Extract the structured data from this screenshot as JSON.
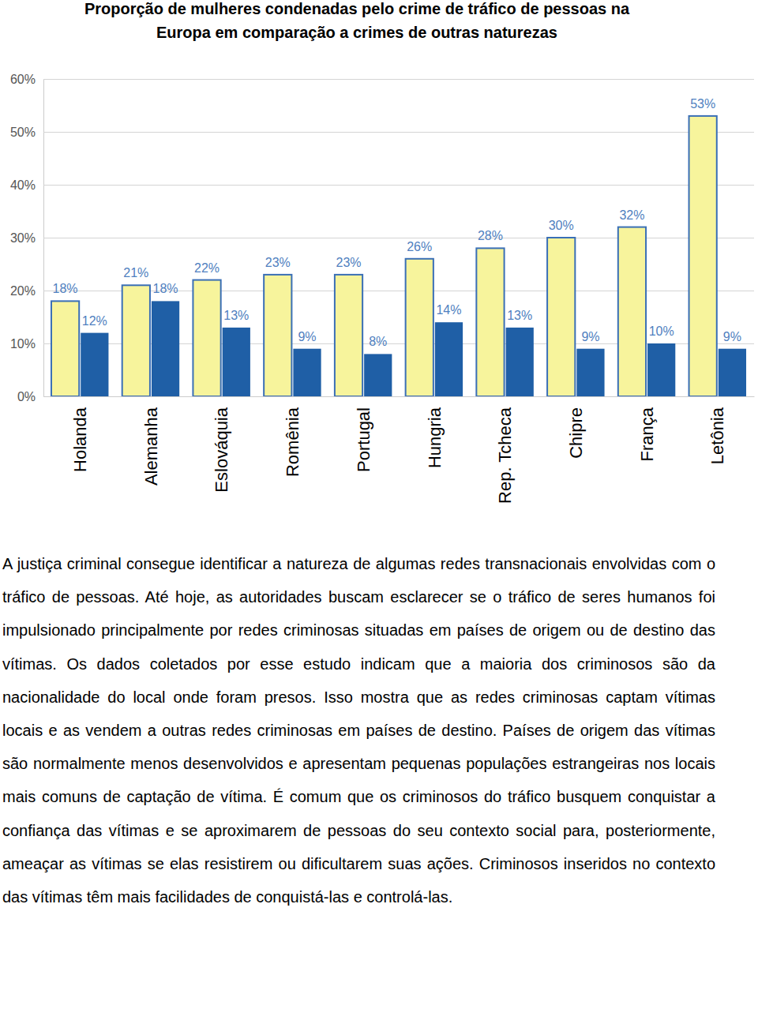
{
  "chart_data": {
    "type": "bar",
    "title": "Proporção de mulheres condenadas pelo crime de tráfico de pessoas na\nEuropa em comparação a crimes de outras naturezas",
    "categories": [
      "Holanda",
      "Alemanha",
      "Eslováquia",
      "Romênia",
      "Portugal",
      "Hungria",
      "Rep. Tcheca",
      "Chipre",
      "França",
      "Letônia"
    ],
    "series": [
      {
        "color": "#f7f49c",
        "values": [
          18,
          21,
          22,
          23,
          23,
          26,
          28,
          30,
          32,
          53
        ],
        "value_labels": [
          "18%",
          "21%",
          "22%",
          "23%",
          "23%",
          "26%",
          "28%",
          "30%",
          "32%",
          "53%"
        ]
      },
      {
        "color": "#1f5fa6",
        "values": [
          12,
          18,
          13,
          9,
          8,
          14,
          13,
          9,
          10,
          9
        ],
        "value_labels": [
          "12%",
          "18%",
          "13%",
          "9%",
          "8%",
          "14%",
          "13%",
          "9%",
          "10%",
          "9%"
        ]
      }
    ],
    "ylim": [
      0,
      60
    ],
    "yticks": [
      {
        "value": 0,
        "label": "0%"
      },
      {
        "value": 10,
        "label": "10%"
      },
      {
        "value": 20,
        "label": "20%"
      },
      {
        "value": 30,
        "label": "30%"
      },
      {
        "value": 40,
        "label": "40%"
      },
      {
        "value": 50,
        "label": "50%"
      },
      {
        "value": 60,
        "label": "60%"
      }
    ],
    "grid": true,
    "data_labels": true
  },
  "body": {
    "paragraph": "A justiça criminal consegue identificar a natureza de algumas redes transnacionais envolvidas com o tráfico de pessoas. Até hoje, as autoridades buscam esclarecer se o tráfico de seres humanos foi impulsionado principalmente por redes criminosas situadas em países de origem ou de destino das vítimas. Os dados coletados por esse estudo indicam que a maioria dos criminosos são da nacionalidade do local onde foram presos. Isso mostra que as redes criminosas captam vítimas locais e as vendem a outras redes criminosas em países de destino. Países de origem das vítimas são normalmente menos desenvolvidos e apresentam pequenas populações estrangeiras nos locais mais comuns de captação de vítima. É comum que os criminosos do tráfico busquem conquistar a confiança das vítimas e se aproximarem de pessoas do seu contexto social para, posteriormente, ameaçar as vítimas se elas resistirem ou dificultarem suas ações. Criminosos inseridos no contexto das vítimas têm mais facilidades de conquistá-las e controlá-las."
  }
}
